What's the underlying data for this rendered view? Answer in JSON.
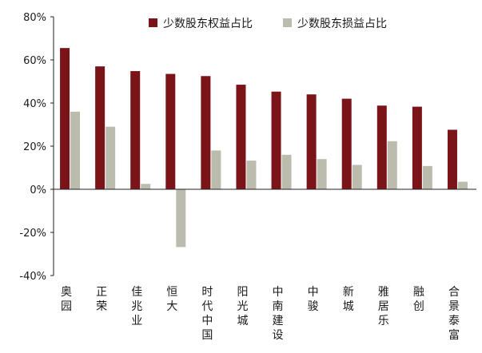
{
  "chart_data": {
    "type": "bar",
    "title": "",
    "xlabel": "",
    "ylabel": "",
    "ylim": [
      -40,
      80
    ],
    "yticks": [
      -40,
      -20,
      0,
      20,
      40,
      60,
      80
    ],
    "ytick_labels": [
      "-40%",
      "-20%",
      "0%",
      "20%",
      "40%",
      "60%",
      "80%"
    ],
    "categories": [
      "奥园",
      "正荣",
      "佳兆业",
      "恒大",
      "时代中国",
      "阳光城",
      "中南建设",
      "中骏",
      "新城",
      "雅居乐",
      "融创",
      "合景泰富"
    ],
    "series": [
      {
        "name": "少数股东权益占比",
        "color": "#7b1419",
        "values": [
          65.5,
          57,
          54.8,
          53.5,
          52.5,
          48.5,
          45.3,
          44,
          42,
          38.8,
          38.3,
          27.6
        ]
      },
      {
        "name": "少数股东损益占比",
        "color": "#bcbcae",
        "values": [
          36,
          29,
          2.5,
          -26.8,
          18,
          13.3,
          16,
          14,
          11.3,
          22.3,
          10.8,
          3.5
        ]
      }
    ],
    "legend_position": "top",
    "grid": false
  }
}
